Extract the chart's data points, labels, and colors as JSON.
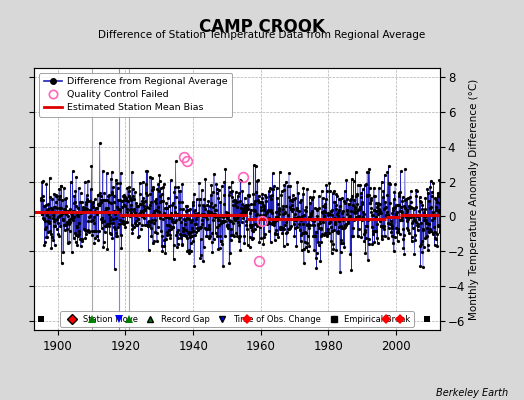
{
  "title": "CAMP CROOK",
  "subtitle": "Difference of Station Temperature Data from Regional Average",
  "ylabel": "Monthly Temperature Anomaly Difference (°C)",
  "ylim": [
    -6.5,
    8.5
  ],
  "xlim": [
    1893,
    2013
  ],
  "background_color": "#d8d8d8",
  "plot_bg_color": "#ffffff",
  "grid_color": "#b0b0b0",
  "grid_linestyle": "--",
  "line_color": "#2222bb",
  "bias_color": "#dd0000",
  "marker_color": "#000000",
  "qc_color": "#ff66bb",
  "seed": 42,
  "station_moves": [
    1956,
    1997,
    2001
  ],
  "record_gaps": [
    1910,
    1921
  ],
  "time_obs_changes": [
    1918
  ],
  "empirical_breaks": [
    1895,
    2009
  ],
  "bias_segments": [
    {
      "start": 1893,
      "end": 1918,
      "value": 0.28
    },
    {
      "start": 1918,
      "end": 1956,
      "value": 0.06
    },
    {
      "start": 1956,
      "end": 1997,
      "value": -0.12
    },
    {
      "start": 1997,
      "end": 2001,
      "value": -0.04
    },
    {
      "start": 2001,
      "end": 2013,
      "value": 0.08
    }
  ],
  "qc_failed_years": [
    1937.3,
    1938.2,
    1954.8,
    1959.5,
    1960.3
  ],
  "qc_failed_values": [
    3.4,
    3.15,
    2.25,
    -2.55,
    -0.25
  ],
  "vertical_gray_lines": [
    1910,
    1921
  ],
  "vertical_blue_line": 1918,
  "vertical_line_gray_color": "#aaaaaa",
  "vertical_line_blue_color": "#8888cc",
  "bottom_y": -5.85
}
